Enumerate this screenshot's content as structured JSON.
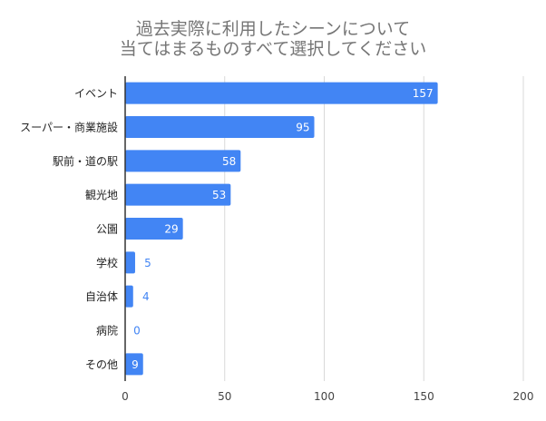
{
  "chart_data": {
    "type": "bar",
    "orientation": "horizontal",
    "title": [
      "過去実際に利用したシーンについて",
      "当てはまるものすべて選択してください"
    ],
    "categories": [
      "イベント",
      "スーパー・商業施設",
      "駅前・道の駅",
      "観光地",
      "公園",
      "学校",
      "自治体",
      "病院",
      "その他"
    ],
    "values": [
      157,
      95,
      58,
      53,
      29,
      5,
      4,
      0,
      9
    ],
    "xlim": [
      0,
      200
    ],
    "xticks": [
      0,
      50,
      100,
      150,
      200
    ],
    "grid": true,
    "legend": "none",
    "bar_color": "#4285f4",
    "label_color_inside": "#ffffff",
    "label_color_outside": "#4285f4"
  }
}
